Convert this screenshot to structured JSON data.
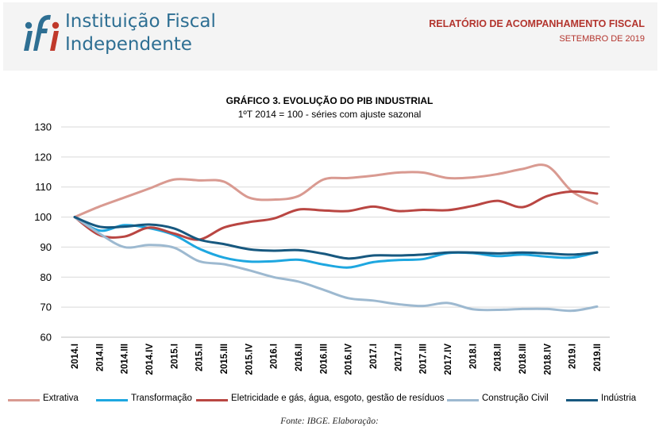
{
  "header": {
    "logo_text": "ifi",
    "institution_line1": "Instituição Fiscal",
    "institution_line2": "Independente",
    "report_title": "RELATÓRIO DE ACOMPANHAMENTO FISCAL",
    "report_date": "SETEMBRO DE 2019"
  },
  "colors": {
    "brand_blue": "#2e6f93",
    "brand_red": "#b3352e",
    "header_bg": "#f4f4f4"
  },
  "chart_data": {
    "type": "line",
    "title": "GRÁFICO 3. EVOLUÇÃO DO PIB INDUSTRIAL",
    "subtitle": "1ºT 2014 = 100 - séries com ajuste sazonal",
    "categories": [
      "2014.I",
      "2014.II",
      "2014.III",
      "2014.IV",
      "2015.I",
      "2015.II",
      "2015.III",
      "2015.IV",
      "2016.I",
      "2016.II",
      "2016.III",
      "2016.IV",
      "2017.I",
      "2017.II",
      "2017.III",
      "2017.IV",
      "2018.I",
      "2018.II",
      "2018.III",
      "2018.IV",
      "2019.I",
      "2019.II"
    ],
    "ylim": [
      60,
      130
    ],
    "yticks": [
      60,
      70,
      80,
      90,
      100,
      110,
      120,
      130
    ],
    "grid": true,
    "legend_position": "bottom",
    "series": [
      {
        "name": "Extrativa",
        "color": "#d99a91",
        "values": [
          100,
          103.5,
          106.5,
          109.5,
          112.5,
          112.2,
          111.8,
          106.5,
          105.8,
          107,
          112.5,
          113,
          113.8,
          114.8,
          114.8,
          113,
          113.2,
          114.3,
          116,
          117,
          108.5,
          104.5
        ]
      },
      {
        "name": "Transformação",
        "color": "#1ea7e0",
        "values": [
          100,
          95.5,
          97.3,
          96.3,
          94,
          89.5,
          86.5,
          85.2,
          85.3,
          85.8,
          84.2,
          83.2,
          85,
          85.7,
          86,
          88,
          88,
          87,
          87.5,
          86.8,
          86.5,
          88.3
        ]
      },
      {
        "name": "Eletricidade e gás, água, esgoto, gestão de resíduos",
        "color": "#b94642",
        "values": [
          100,
          94,
          93.5,
          96.5,
          94.5,
          92.5,
          96.5,
          98.3,
          99.5,
          102.5,
          102.2,
          102,
          103.5,
          102,
          102.4,
          102.3,
          103.7,
          105.4,
          103.3,
          107,
          108.5,
          107.8
        ]
      },
      {
        "name": "Construção Civil",
        "color": "#9db9d0",
        "values": [
          100,
          94.5,
          90,
          90.7,
          89.8,
          85.3,
          84.3,
          82.3,
          80,
          78.5,
          75.8,
          73,
          72.2,
          71,
          70.4,
          71.4,
          69.3,
          69.1,
          69.4,
          69.4,
          68.8,
          70.2
        ]
      },
      {
        "name": "Indústria",
        "color": "#17587f",
        "values": [
          100,
          96.8,
          96.8,
          97.5,
          96.2,
          92.5,
          91,
          89.3,
          88.8,
          89,
          87.8,
          86.2,
          87.2,
          87.2,
          87.5,
          88.2,
          88.2,
          87.9,
          88.2,
          87.9,
          87.5,
          88.2
        ]
      }
    ]
  },
  "source": "Fonte: IBGE. Elaboração:"
}
